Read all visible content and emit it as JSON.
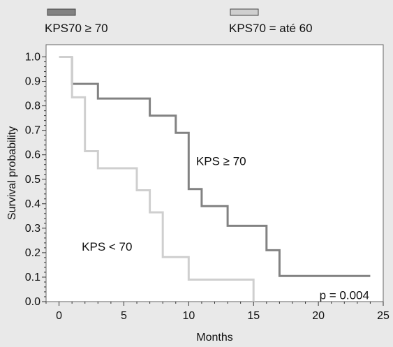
{
  "chart_data": {
    "type": "line",
    "title": "",
    "xlabel": "Months",
    "ylabel": "Survival probability",
    "xlim": [
      -1,
      25
    ],
    "ylim": [
      0,
      1.05
    ],
    "x_ticks": [
      0,
      5,
      10,
      15,
      20,
      25
    ],
    "y_ticks": [
      0.0,
      0.1,
      0.2,
      0.3,
      0.4,
      0.5,
      0.6,
      0.7,
      0.8,
      0.9,
      1.0
    ],
    "x_tick_labels": [
      "0",
      "5",
      "10",
      "15",
      "20",
      "25"
    ],
    "y_tick_labels": [
      "0.0",
      "0.1",
      "0.2",
      "0.3",
      "0.4",
      "0.5",
      "0.6",
      "0.7",
      "0.8",
      "0.9",
      "1.0"
    ],
    "grid": false,
    "legend_position": "top",
    "series": [
      {
        "name": "KPS70 ≥ 70",
        "color": "#828282",
        "step": true,
        "points": [
          [
            1,
            1.0
          ],
          [
            1,
            0.89
          ],
          [
            3,
            0.89
          ],
          [
            3,
            0.83
          ],
          [
            7,
            0.83
          ],
          [
            7,
            0.76
          ],
          [
            9,
            0.76
          ],
          [
            9,
            0.69
          ],
          [
            10,
            0.69
          ],
          [
            10,
            0.46
          ],
          [
            11,
            0.46
          ],
          [
            11,
            0.39
          ],
          [
            13,
            0.39
          ],
          [
            13,
            0.31
          ],
          [
            16,
            0.31
          ],
          [
            16,
            0.21
          ],
          [
            17,
            0.21
          ],
          [
            17,
            0.105
          ],
          [
            24,
            0.105
          ]
        ]
      },
      {
        "name": "KPS70 = até 60",
        "color": "#cfcfcf",
        "step": true,
        "points": [
          [
            0,
            1.0
          ],
          [
            1,
            1.0
          ],
          [
            1,
            0.835
          ],
          [
            2,
            0.835
          ],
          [
            2,
            0.615
          ],
          [
            3,
            0.615
          ],
          [
            3,
            0.545
          ],
          [
            6,
            0.545
          ],
          [
            6,
            0.455
          ],
          [
            7,
            0.455
          ],
          [
            7,
            0.365
          ],
          [
            8,
            0.365
          ],
          [
            8,
            0.182
          ],
          [
            10,
            0.182
          ],
          [
            10,
            0.09
          ],
          [
            15,
            0.09
          ],
          [
            15,
            0.0
          ]
        ]
      }
    ],
    "annotations": [
      {
        "text": "KPS ≥ 70",
        "x": 12.5,
        "y": 0.575
      },
      {
        "text": "KPS < 70",
        "x": 3.7,
        "y": 0.225
      },
      {
        "text": "p = 0.004",
        "x": 22,
        "y": 0.027
      }
    ]
  }
}
